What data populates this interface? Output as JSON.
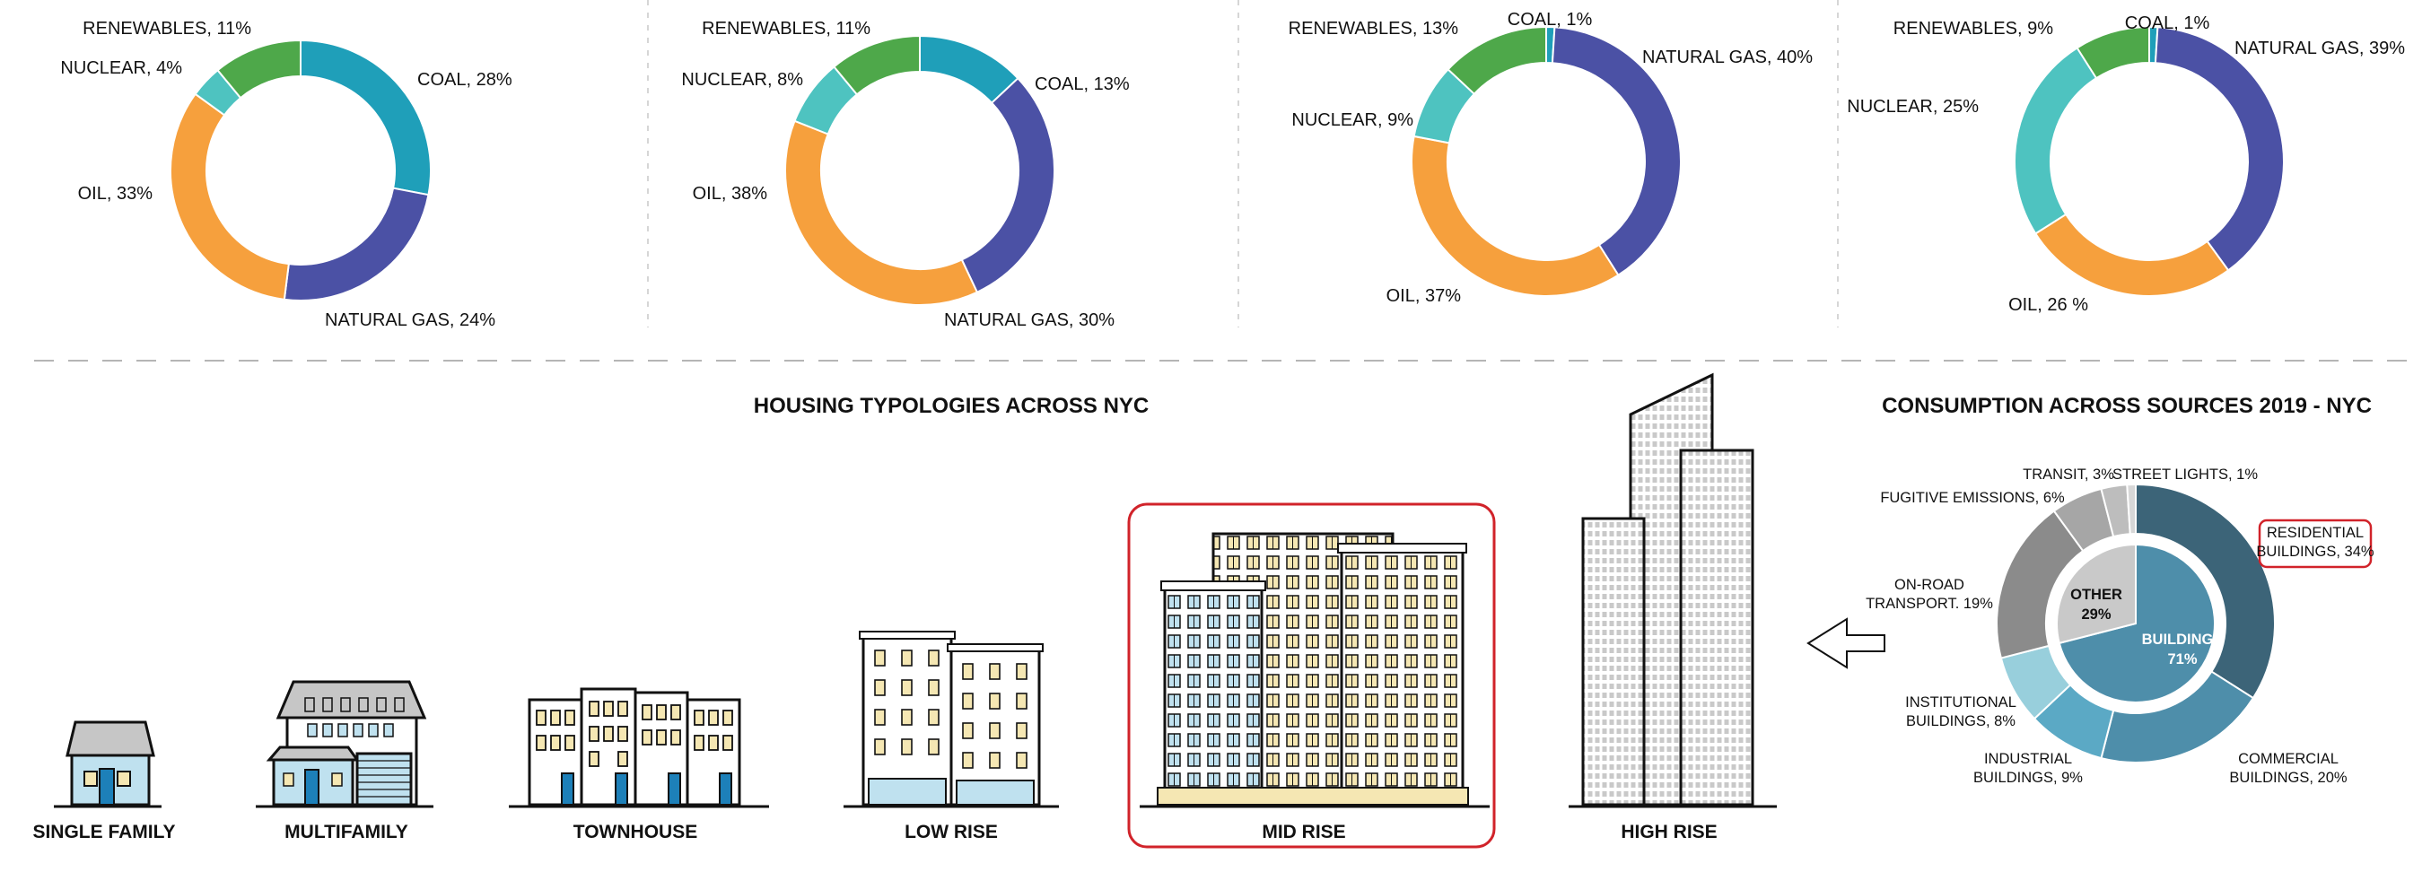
{
  "colors": {
    "coal": "#1f9fb9",
    "natural_gas": "#4b51a5",
    "oil": "#f6a03d",
    "nuclear": "#4ec3c0",
    "renewables": "#4ea84a",
    "buildings_inner": "#4e8eaa",
    "other_inner": "#c9c9c9",
    "highlight": "#d1232a",
    "window": "#f5e7b3",
    "glass": "#bfe1ef",
    "door": "#1d80b9"
  },
  "chart_data": [
    {
      "type": "pie",
      "variant": "donut",
      "slices": [
        {
          "label": "COAL, 28%",
          "value": 28,
          "color_key": "coal"
        },
        {
          "label": "NATURAL GAS, 24%",
          "value": 24,
          "color_key": "natural_gas"
        },
        {
          "label": "OIL, 33%",
          "value": 33,
          "color_key": "oil"
        },
        {
          "label": "NUCLEAR, 4%",
          "value": 4,
          "color_key": "nuclear"
        },
        {
          "label": "RENEWABLES, 11%",
          "value": 11,
          "color_key": "renewables"
        }
      ]
    },
    {
      "type": "pie",
      "variant": "donut",
      "slices": [
        {
          "label": "COAL, 13%",
          "value": 13,
          "color_key": "coal"
        },
        {
          "label": "NATURAL GAS, 30%",
          "value": 30,
          "color_key": "natural_gas"
        },
        {
          "label": "OIL, 38%",
          "value": 38,
          "color_key": "oil"
        },
        {
          "label": "NUCLEAR, 8%",
          "value": 8,
          "color_key": "nuclear"
        },
        {
          "label": "RENEWABLES, 11%",
          "value": 11,
          "color_key": "renewables"
        }
      ]
    },
    {
      "type": "pie",
      "variant": "donut",
      "slices": [
        {
          "label": "COAL, 1%",
          "value": 1,
          "color_key": "coal"
        },
        {
          "label": "NATURAL GAS, 40%",
          "value": 40,
          "color_key": "natural_gas"
        },
        {
          "label": "OIL, 37%",
          "value": 37,
          "color_key": "oil"
        },
        {
          "label": "NUCLEAR, 9%",
          "value": 9,
          "color_key": "nuclear"
        },
        {
          "label": "RENEWABLES, 13%",
          "value": 13,
          "color_key": "renewables"
        }
      ]
    },
    {
      "type": "pie",
      "variant": "donut",
      "slices": [
        {
          "label": "COAL, 1%",
          "value": 1,
          "color_key": "coal"
        },
        {
          "label": "NATURAL GAS, 39%",
          "value": 39,
          "color_key": "natural_gas"
        },
        {
          "label": "OIL, 26 %",
          "value": 26,
          "color_key": "oil"
        },
        {
          "label": "NUCLEAR, 25%",
          "value": 25,
          "color_key": "nuclear"
        },
        {
          "label": "RENEWABLES, 9%",
          "value": 9,
          "color_key": "renewables"
        }
      ]
    },
    {
      "type": "pie",
      "variant": "nested-donut",
      "title": "CONSUMPTION ACROSS SOURCES 2019 - NYC",
      "inner": [
        {
          "label": [
            "BUILDINGS",
            "71%"
          ],
          "value": 71,
          "color": "#4e8eaa",
          "text_color": "#ffffff"
        },
        {
          "label": [
            "OTHER",
            "29%"
          ],
          "value": 29,
          "color": "#c9c9c9",
          "text_color": "#111111"
        }
      ],
      "outer": [
        {
          "label": [
            "RESIDENTIAL",
            "BUILDINGS, 34%"
          ],
          "value": 34,
          "color": "#3c6478",
          "highlighted": true
        },
        {
          "label": [
            "COMMERCIAL",
            "BUILDINGS, 20%"
          ],
          "value": 20,
          "color": "#4e8eaa"
        },
        {
          "label": [
            "INDUSTRIAL",
            "BUILDINGS, 9%"
          ],
          "value": 9,
          "color": "#5ba9c5"
        },
        {
          "label": [
            "INSTITUTIONAL",
            "BUILDINGS, 8%"
          ],
          "value": 8,
          "color": "#98cfdc"
        },
        {
          "label": [
            "ON-ROAD",
            "TRANSPORT. 19%"
          ],
          "value": 19,
          "color": "#8b8b8b"
        },
        {
          "label": [
            "FUGITIVE EMISSIONS, 6%"
          ],
          "value": 6,
          "color": "#a6a6a6"
        },
        {
          "label": [
            "TRANSIT, 3%"
          ],
          "value": 3,
          "color": "#bdbdbd"
        },
        {
          "label": [
            "STREET LIGHTS, 1%"
          ],
          "value": 1,
          "color": "#d7d7d7"
        }
      ]
    }
  ],
  "housing": {
    "title": "HOUSING TYPOLOGIES ACROSS NYC",
    "types": [
      "SINGLE FAMILY",
      "MULTIFAMILY",
      "TOWNHOUSE",
      "LOW RISE",
      "MID RISE",
      "HIGH RISE"
    ],
    "highlighted": "MID RISE"
  }
}
